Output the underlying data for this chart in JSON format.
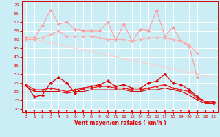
{
  "x": [
    0,
    1,
    2,
    3,
    4,
    5,
    6,
    7,
    8,
    9,
    10,
    11,
    12,
    13,
    14,
    15,
    16,
    17,
    18,
    19,
    20,
    21,
    22,
    23
  ],
  "series": [
    {
      "name": "rafales_max",
      "color": "#ff9999",
      "lw": 0.8,
      "marker": "D",
      "ms": 2.0,
      "values": [
        51,
        51,
        58,
        67,
        59,
        60,
        56,
        55,
        55,
        55,
        60,
        50,
        59,
        49,
        56,
        55,
        67,
        52,
        57,
        49,
        46,
        28,
        null,
        null
      ]
    },
    {
      "name": "rafales_mean",
      "color": "#ffaaaa",
      "lw": 0.9,
      "marker": "D",
      "ms": 2.0,
      "values": [
        50,
        50,
        51,
        53,
        55,
        52,
        52,
        52,
        52,
        51,
        50,
        50,
        50,
        49,
        50,
        51,
        51,
        51,
        50,
        49,
        47,
        42,
        null,
        null
      ]
    },
    {
      "name": "trend_line",
      "color": "#ffcccc",
      "lw": 0.9,
      "marker": null,
      "ms": 0,
      "values": [
        51,
        50,
        49,
        48,
        47,
        46,
        45,
        44,
        43,
        42,
        41,
        40,
        39,
        38,
        37,
        36,
        35,
        34,
        33,
        32,
        31,
        30,
        29,
        28
      ]
    },
    {
      "name": "vent_max",
      "color": "#dd0000",
      "lw": 0.9,
      "marker": "P",
      "ms": 2.5,
      "values": [
        24,
        17,
        18,
        25,
        28,
        25,
        19,
        22,
        23,
        24,
        26,
        23,
        24,
        22,
        22,
        25,
        26,
        30,
        25,
        24,
        21,
        17,
        14,
        14
      ]
    },
    {
      "name": "vent_mean",
      "color": "#ee1111",
      "lw": 0.9,
      "marker": "D",
      "ms": 1.8,
      "values": [
        24,
        21,
        21,
        22,
        21,
        20,
        21,
        22,
        22,
        23,
        23,
        22,
        22,
        21,
        21,
        22,
        23,
        24,
        22,
        21,
        20,
        16,
        14,
        13
      ]
    },
    {
      "name": "vent_min",
      "color": "#cc0000",
      "lw": 0.8,
      "marker": null,
      "ms": 0,
      "values": [
        23,
        20,
        20,
        20,
        20,
        19,
        20,
        20,
        21,
        21,
        21,
        21,
        21,
        20,
        20,
        21,
        21,
        22,
        21,
        20,
        18,
        15,
        13,
        13
      ]
    }
  ],
  "xlabel": "Vent moyen/en rafales ( km/h )",
  "xlim": [
    -0.5,
    23.5
  ],
  "ylim": [
    8,
    72
  ],
  "yticks": [
    10,
    15,
    20,
    25,
    30,
    35,
    40,
    45,
    50,
    55,
    60,
    65,
    70
  ],
  "xticks": [
    0,
    1,
    2,
    3,
    4,
    5,
    6,
    7,
    8,
    9,
    10,
    11,
    12,
    13,
    14,
    15,
    16,
    17,
    18,
    19,
    20,
    21,
    22,
    23
  ],
  "bg_color": "#cbedf5",
  "grid_color": "#ffffff",
  "tick_color": "#dd0000",
  "label_color": "#dd0000",
  "arrow_color": "#cc0000",
  "figsize": [
    3.2,
    2.0
  ],
  "dpi": 100
}
